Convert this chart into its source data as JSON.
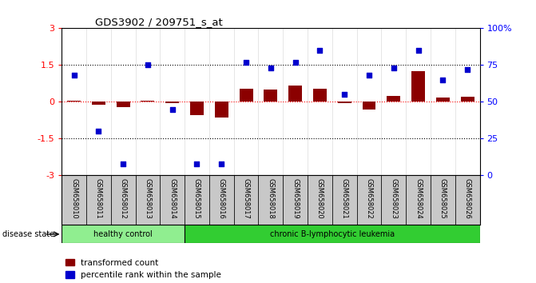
{
  "title": "GDS3902 / 209751_s_at",
  "samples": [
    "GSM658010",
    "GSM658011",
    "GSM658012",
    "GSM658013",
    "GSM658014",
    "GSM658015",
    "GSM658016",
    "GSM658017",
    "GSM658018",
    "GSM658019",
    "GSM658020",
    "GSM658021",
    "GSM658022",
    "GSM658023",
    "GSM658024",
    "GSM658025",
    "GSM658026"
  ],
  "transformed_count": [
    0.05,
    -0.1,
    -0.2,
    0.05,
    -0.05,
    -0.55,
    -0.65,
    0.55,
    0.5,
    0.65,
    0.55,
    -0.05,
    -0.3,
    0.25,
    1.25,
    0.18,
    0.22
  ],
  "percentile_rank": [
    68,
    30,
    8,
    75,
    45,
    8,
    8,
    77,
    73,
    77,
    85,
    55,
    68,
    73,
    85,
    65,
    72
  ],
  "ylim_left": [
    -3,
    3
  ],
  "ylim_right": [
    0,
    100
  ],
  "yticks_left": [
    -3,
    -1.5,
    0,
    1.5,
    3
  ],
  "ytick_labels_left": [
    "-3",
    "-1.5",
    "0",
    "1.5",
    "3"
  ],
  "yticks_right": [
    0,
    25,
    50,
    75,
    100
  ],
  "ytick_labels_right": [
    "0",
    "25",
    "50",
    "75",
    "100%"
  ],
  "dotted_lines": [
    -1.5,
    1.5
  ],
  "zero_line": 0,
  "healthy_control_count": 5,
  "group1_label": "healthy control",
  "group2_label": "chronic B-lymphocytic leukemia",
  "disease_state_label": "disease state",
  "legend_red": "transformed count",
  "legend_blue": "percentile rank within the sample",
  "bar_color": "#8B0000",
  "dot_color": "#0000CD",
  "group1_color": "#90EE90",
  "group2_color": "#32CD32",
  "bg_color": "#FFFFFF",
  "label_bg": "#C8C8C8"
}
